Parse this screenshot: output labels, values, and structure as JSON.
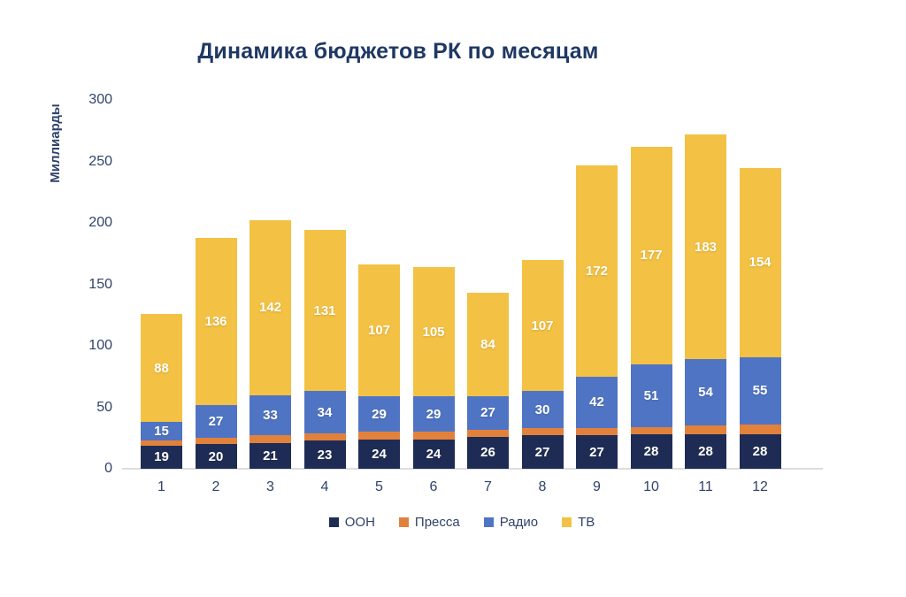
{
  "chart": {
    "title": "Динамика бюджетов РК по месяцам",
    "ylabel": "Миллиарды"
  },
  "chart_data": {
    "type": "bar",
    "subtype": "stacked",
    "title": "Динамика бюджетов РК по месяцам",
    "xlabel": "",
    "ylabel": "Миллиарды",
    "categories": [
      "1",
      "2",
      "3",
      "4",
      "5",
      "6",
      "7",
      "8",
      "9",
      "10",
      "11",
      "12"
    ],
    "series": [
      {
        "name": "ООН",
        "color": "#1E2C55",
        "data_labels": true,
        "values": [
          19,
          20,
          21,
          23,
          24,
          24,
          26,
          27,
          27,
          28,
          28,
          28
        ]
      },
      {
        "name": "Пресса",
        "color": "#E2813C",
        "data_labels": false,
        "values": [
          4,
          5,
          6,
          6,
          6,
          6,
          6,
          6,
          6,
          6,
          7,
          8
        ]
      },
      {
        "name": "Радио",
        "color": "#4F74C4",
        "data_labels": true,
        "values": [
          15,
          27,
          33,
          34,
          29,
          29,
          27,
          30,
          42,
          51,
          54,
          55
        ]
      },
      {
        "name": "ТВ",
        "color": "#F3C144",
        "data_labels": true,
        "values": [
          88,
          136,
          142,
          131,
          107,
          105,
          84,
          107,
          172,
          177,
          183,
          154
        ]
      }
    ],
    "yticks": [
      0,
      50,
      100,
      150,
      200,
      250,
      300
    ],
    "ylim": [
      0,
      300
    ],
    "grid": false,
    "legend_position": "bottom",
    "colors": {
      "title_text": "#1F3864",
      "axis_text": "#2F4269",
      "axis_line": "#DDDDDD",
      "data_label_text": "#FFFFFF"
    }
  }
}
